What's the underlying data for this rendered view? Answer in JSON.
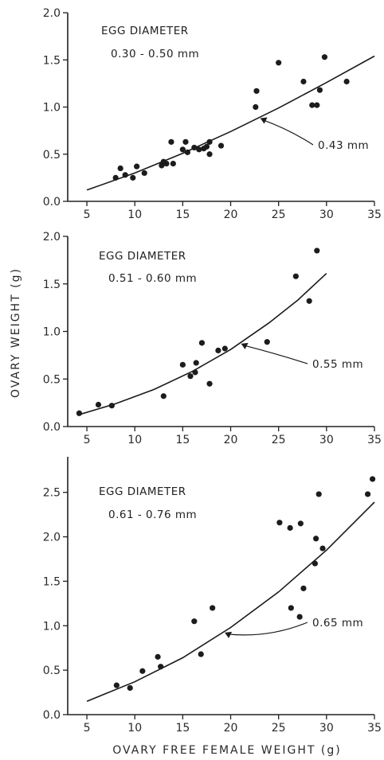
{
  "figure": {
    "y_label": "OVARY WEIGHT (g)",
    "x_label": "OVARY FREE FEMALE WEIGHT (g)"
  },
  "chart_data": [
    {
      "type": "scatter",
      "title_line1": "EGG DIAMETER",
      "title_line2": "0.30 - 0.50 mm",
      "fit_label": "0.43 mm",
      "fit_label_at_x": 23,
      "xlim": [
        3,
        35
      ],
      "ylim": [
        0,
        2.0
      ],
      "xticks": [
        "5",
        "10",
        "15",
        "20",
        "25",
        "30",
        "35"
      ],
      "xtick_values": [
        5,
        10,
        15,
        20,
        25,
        30,
        35
      ],
      "yticks": [
        "0.0",
        "0.5",
        "1.0",
        "1.5",
        "2.0"
      ],
      "ytick_values": [
        0,
        0.5,
        1.0,
        1.5,
        2.0
      ],
      "fit_curve": {
        "x": [
          5,
          10,
          15,
          20,
          25,
          30,
          35
        ],
        "y": [
          0.12,
          0.3,
          0.51,
          0.74,
          0.99,
          1.26,
          1.54
        ]
      },
      "points": [
        {
          "x": 8,
          "y": 0.25
        },
        {
          "x": 8.5,
          "y": 0.35
        },
        {
          "x": 9,
          "y": 0.28
        },
        {
          "x": 9.8,
          "y": 0.25
        },
        {
          "x": 10.2,
          "y": 0.37
        },
        {
          "x": 11,
          "y": 0.3
        },
        {
          "x": 12.8,
          "y": 0.38
        },
        {
          "x": 13,
          "y": 0.42
        },
        {
          "x": 13.3,
          "y": 0.4
        },
        {
          "x": 13.8,
          "y": 0.63
        },
        {
          "x": 14,
          "y": 0.4
        },
        {
          "x": 15,
          "y": 0.55
        },
        {
          "x": 15.3,
          "y": 0.63
        },
        {
          "x": 15.5,
          "y": 0.52
        },
        {
          "x": 16.2,
          "y": 0.57
        },
        {
          "x": 16.7,
          "y": 0.55
        },
        {
          "x": 17.2,
          "y": 0.56
        },
        {
          "x": 17.5,
          "y": 0.58
        },
        {
          "x": 17.8,
          "y": 0.5
        },
        {
          "x": 17.8,
          "y": 0.63
        },
        {
          "x": 19,
          "y": 0.59
        },
        {
          "x": 22.6,
          "y": 1.0
        },
        {
          "x": 22.7,
          "y": 1.17
        },
        {
          "x": 25,
          "y": 1.47
        },
        {
          "x": 27.6,
          "y": 1.27
        },
        {
          "x": 28.5,
          "y": 1.02
        },
        {
          "x": 29,
          "y": 1.02
        },
        {
          "x": 29.3,
          "y": 1.18
        },
        {
          "x": 29.8,
          "y": 1.53
        },
        {
          "x": 32.1,
          "y": 1.27
        }
      ]
    },
    {
      "type": "scatter",
      "title_line1": "EGG DIAMETER",
      "title_line2": "0.51 - 0.60 mm",
      "fit_label": "0.55 mm",
      "fit_label_at_x": 21,
      "xlim": [
        3,
        35
      ],
      "ylim": [
        0,
        2.0
      ],
      "xticks": [
        "5",
        "10",
        "15",
        "20",
        "25",
        "30",
        "35"
      ],
      "xtick_values": [
        5,
        10,
        15,
        20,
        25,
        30,
        35
      ],
      "yticks": [
        "0.0",
        "0.5",
        "1.0",
        "1.5",
        "2.0"
      ],
      "ytick_values": [
        0,
        0.5,
        1.0,
        1.5,
        2.0
      ],
      "fit_curve": {
        "x": [
          4,
          8,
          12,
          16,
          20,
          24,
          27,
          30
        ],
        "y": [
          0.12,
          0.24,
          0.39,
          0.58,
          0.81,
          1.09,
          1.33,
          1.61
        ]
      },
      "points": [
        {
          "x": 4.2,
          "y": 0.14
        },
        {
          "x": 6.2,
          "y": 0.23
        },
        {
          "x": 7.6,
          "y": 0.22
        },
        {
          "x": 13,
          "y": 0.32
        },
        {
          "x": 15,
          "y": 0.65
        },
        {
          "x": 15.8,
          "y": 0.53
        },
        {
          "x": 16.3,
          "y": 0.57
        },
        {
          "x": 16.4,
          "y": 0.67
        },
        {
          "x": 17,
          "y": 0.88
        },
        {
          "x": 17.8,
          "y": 0.45
        },
        {
          "x": 18.7,
          "y": 0.8
        },
        {
          "x": 19.4,
          "y": 0.82
        },
        {
          "x": 23.8,
          "y": 0.89
        },
        {
          "x": 26.8,
          "y": 1.58
        },
        {
          "x": 28.2,
          "y": 1.32
        },
        {
          "x": 29,
          "y": 1.85
        }
      ]
    },
    {
      "type": "scatter",
      "title_line1": "EGG DIAMETER",
      "title_line2": "0.61 - 0.76 mm",
      "fit_label": "0.65 mm",
      "fit_label_at_x": 19.3,
      "xlim": [
        3,
        35
      ],
      "ylim": [
        0,
        2.9
      ],
      "xticks": [
        "5",
        "10",
        "15",
        "20",
        "25",
        "30",
        "35"
      ],
      "xtick_values": [
        5,
        10,
        15,
        20,
        25,
        30,
        35
      ],
      "yticks": [
        "0.0",
        "0.5",
        "1.0",
        "1.5",
        "2.0",
        "2.5"
      ],
      "ytick_values": [
        0,
        0.5,
        1.0,
        1.5,
        2.0,
        2.5
      ],
      "fit_curve": {
        "x": [
          5,
          10,
          15,
          20,
          25,
          30,
          35
        ],
        "y": [
          0.15,
          0.37,
          0.64,
          0.98,
          1.38,
          1.85,
          2.39
        ]
      },
      "points": [
        {
          "x": 8.1,
          "y": 0.33
        },
        {
          "x": 9.5,
          "y": 0.3
        },
        {
          "x": 10.8,
          "y": 0.49
        },
        {
          "x": 12.4,
          "y": 0.65
        },
        {
          "x": 12.7,
          "y": 0.54
        },
        {
          "x": 16.2,
          "y": 1.05
        },
        {
          "x": 16.9,
          "y": 0.68
        },
        {
          "x": 18.1,
          "y": 1.2
        },
        {
          "x": 25.1,
          "y": 2.16
        },
        {
          "x": 26.2,
          "y": 2.1
        },
        {
          "x": 26.3,
          "y": 1.2
        },
        {
          "x": 27.2,
          "y": 1.1
        },
        {
          "x": 27.3,
          "y": 2.15
        },
        {
          "x": 27.6,
          "y": 1.42
        },
        {
          "x": 28.8,
          "y": 1.7
        },
        {
          "x": 28.9,
          "y": 1.98
        },
        {
          "x": 29.2,
          "y": 2.48
        },
        {
          "x": 29.6,
          "y": 1.87
        },
        {
          "x": 34.3,
          "y": 2.48
        },
        {
          "x": 34.8,
          "y": 2.65
        }
      ]
    }
  ]
}
